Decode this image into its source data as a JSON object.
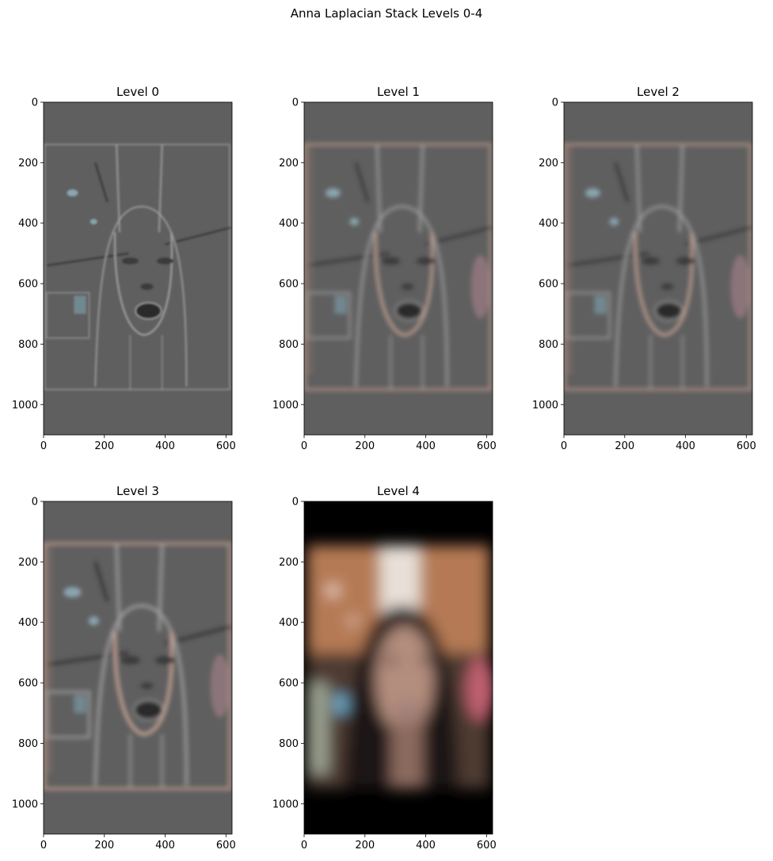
{
  "suptitle": "Anna Laplacian Stack Levels 0-4",
  "panels": [
    {
      "title": "Level 0",
      "style": "laplacian-fine"
    },
    {
      "title": "Level 1",
      "style": "laplacian-mid"
    },
    {
      "title": "Level 2",
      "style": "laplacian-mid"
    },
    {
      "title": "Level 3",
      "style": "laplacian-coarse"
    },
    {
      "title": "Level 4",
      "style": "gaussian-residual"
    }
  ],
  "axes": {
    "x_ticks": [
      "0",
      "200",
      "400",
      "600"
    ],
    "y_ticks": [
      "0",
      "200",
      "400",
      "600",
      "800",
      "1000"
    ],
    "x_tick_values": [
      0,
      200,
      400,
      600
    ],
    "y_tick_values": [
      0,
      200,
      400,
      600,
      800,
      1000
    ],
    "image_width": 620,
    "image_height": 1100
  },
  "colors": {
    "laplacian_background": "#5f5f5f",
    "residual_wall": "#b57a55",
    "residual_floor": "#3a2c25",
    "hair": "#1c1614",
    "skin": "#b38d7d",
    "black": "#000000"
  }
}
